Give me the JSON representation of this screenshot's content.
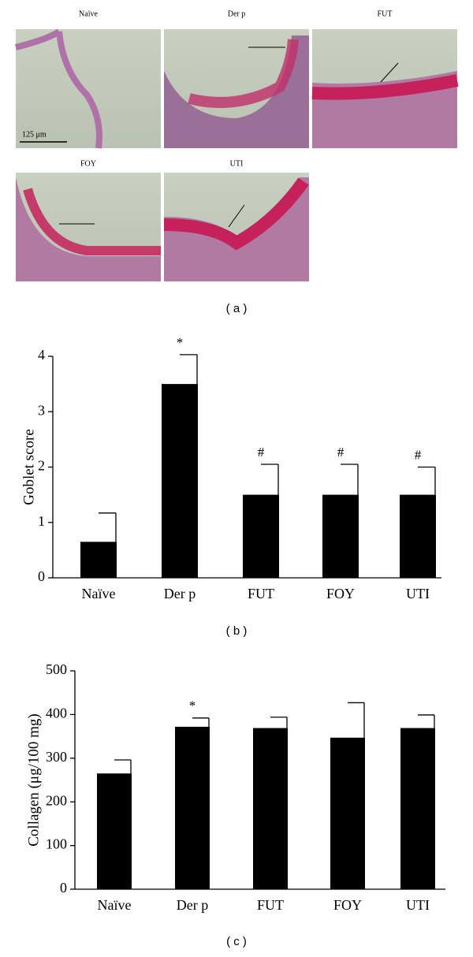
{
  "panel_a": {
    "labels": [
      "Naïve",
      "Der p",
      "FUT",
      "FOY",
      "UTI"
    ],
    "scale_bar": "125 μm",
    "caption": "( a )"
  },
  "chart_data": [
    {
      "type": "bar",
      "caption": "( b )",
      "ylabel": "Goblet score",
      "categories": [
        "Naïve",
        "Der p",
        "FUT",
        "FOY",
        "UTI"
      ],
      "values": [
        0.65,
        3.5,
        1.5,
        1.5,
        1.5
      ],
      "errors": [
        0.52,
        0.53,
        0.55,
        0.55,
        0.5
      ],
      "annotations": [
        null,
        "*",
        "#",
        "#",
        "#"
      ],
      "color": "#000000",
      "ylim": [
        0,
        4
      ],
      "yticks": [
        0,
        1,
        2,
        3,
        4
      ]
    },
    {
      "type": "bar",
      "caption": "( c )",
      "ylabel": "Collagen (μg/100 mg)",
      "categories": [
        "Naïve",
        "Der p",
        "FUT",
        "FOY",
        "UTI"
      ],
      "values": [
        265,
        372,
        369,
        347,
        369
      ],
      "errors": [
        31,
        20,
        25,
        80,
        30
      ],
      "annotations": [
        null,
        "*",
        null,
        null,
        null
      ],
      "color": "#000000",
      "ylim": [
        0,
        500
      ],
      "yticks": [
        0,
        100,
        200,
        300,
        400,
        500
      ]
    }
  ]
}
